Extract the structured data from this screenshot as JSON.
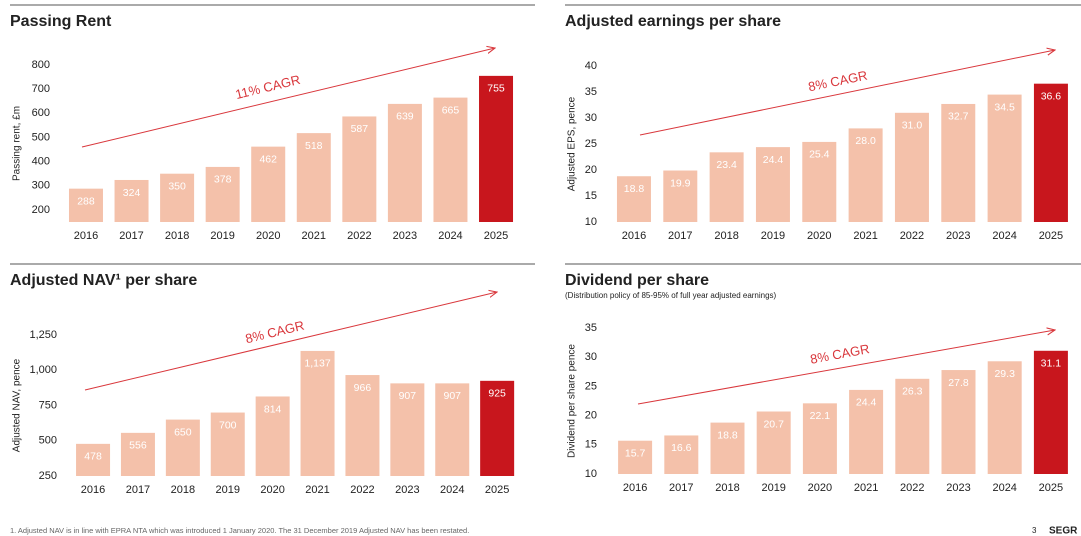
{
  "chart_data": [
    {
      "type": "bar",
      "title": "Passing Rent",
      "y_label": "Passing rent, £m",
      "annotation": "11% CAGR",
      "categories": [
        "2016",
        "2017",
        "2018",
        "2019",
        "2020",
        "2021",
        "2022",
        "2023",
        "2024",
        "2025"
      ],
      "values": [
        288,
        324,
        350,
        378,
        462,
        518,
        587,
        639,
        665,
        755
      ],
      "colors": [
        "#f4c1aa",
        "#f4c1aa",
        "#f4c1aa",
        "#f4c1aa",
        "#f4c1aa",
        "#f4c1aa",
        "#f4c1aa",
        "#f4c1aa",
        "#f4c1aa",
        "#c8161d"
      ],
      "ylim": [
        150,
        800
      ],
      "yticks": [
        200,
        300,
        400,
        500,
        600,
        700,
        800
      ]
    },
    {
      "type": "bar",
      "title": "Adjusted earnings per share",
      "y_label": "Adjusted EPS, pence",
      "annotation": "8% CAGR",
      "categories": [
        "2016",
        "2017",
        "2018",
        "2019",
        "2020",
        "2021",
        "2022",
        "2023",
        "2024",
        "2025"
      ],
      "values": [
        18.8,
        19.9,
        23.4,
        24.4,
        25.4,
        28.0,
        31.0,
        32.7,
        34.5,
        36.6
      ],
      "value_labels": [
        "18.8",
        "19.9",
        "23.4",
        "24.4",
        "25.4",
        "28.0",
        "31.0",
        "32.7",
        "34.5",
        "36.6"
      ],
      "colors": [
        "#f4c1aa",
        "#f4c1aa",
        "#f4c1aa",
        "#f4c1aa",
        "#f4c1aa",
        "#f4c1aa",
        "#f4c1aa",
        "#f4c1aa",
        "#f4c1aa",
        "#c8161d"
      ],
      "ylim": [
        10,
        40
      ],
      "yticks": [
        10,
        15,
        20,
        25,
        30,
        35,
        40
      ]
    },
    {
      "type": "bar",
      "title": "Adjusted NAV¹ per share",
      "y_label": "Adjusted NAV, pence",
      "annotation": "8% CAGR",
      "categories": [
        "2016",
        "2017",
        "2018",
        "2019",
        "2020",
        "2021",
        "2022",
        "2023",
        "2024",
        "2025"
      ],
      "values": [
        478,
        556,
        650,
        700,
        814,
        1137,
        966,
        907,
        907,
        925
      ],
      "value_labels": [
        "478",
        "556",
        "650",
        "700",
        "814",
        "1,137",
        "966",
        "907",
        "907",
        "925"
      ],
      "colors": [
        "#f4c1aa",
        "#f4c1aa",
        "#f4c1aa",
        "#f4c1aa",
        "#f4c1aa",
        "#f4c1aa",
        "#f4c1aa",
        "#f4c1aa",
        "#f4c1aa",
        "#c8161d"
      ],
      "ylim": [
        250,
        1250
      ],
      "yticks": [
        250,
        500,
        750,
        {
          "value": 1000,
          "label": "1,000"
        },
        {
          "value": 1250,
          "label": "1,250"
        }
      ]
    },
    {
      "type": "bar",
      "title": "Dividend per share",
      "subtitle": "(Distribution policy of 85-95% of full year adjusted earnings)",
      "y_label": "Dividend per share pence",
      "annotation": "8% CAGR",
      "categories": [
        "2016",
        "2017",
        "2018",
        "2019",
        "2020",
        "2021",
        "2022",
        "2023",
        "2024",
        "2025"
      ],
      "values": [
        15.7,
        16.6,
        18.8,
        20.7,
        22.1,
        24.4,
        26.3,
        27.8,
        29.3,
        31.1
      ],
      "colors": [
        "#f4c1aa",
        "#f4c1aa",
        "#f4c1aa",
        "#f4c1aa",
        "#f4c1aa",
        "#f4c1aa",
        "#f4c1aa",
        "#f4c1aa",
        "#f4c1aa",
        "#c8161d"
      ],
      "ylim": [
        10,
        35
      ],
      "yticks": [
        10,
        15,
        20,
        25,
        30,
        35
      ]
    }
  ],
  "footnote": "1. Adjusted NAV is in line with EPRA NTA which was introduced 1 January 2020. The 31 December 2019 Adjusted NAV has been restated.",
  "page_number": "3",
  "logo": "SEGR"
}
